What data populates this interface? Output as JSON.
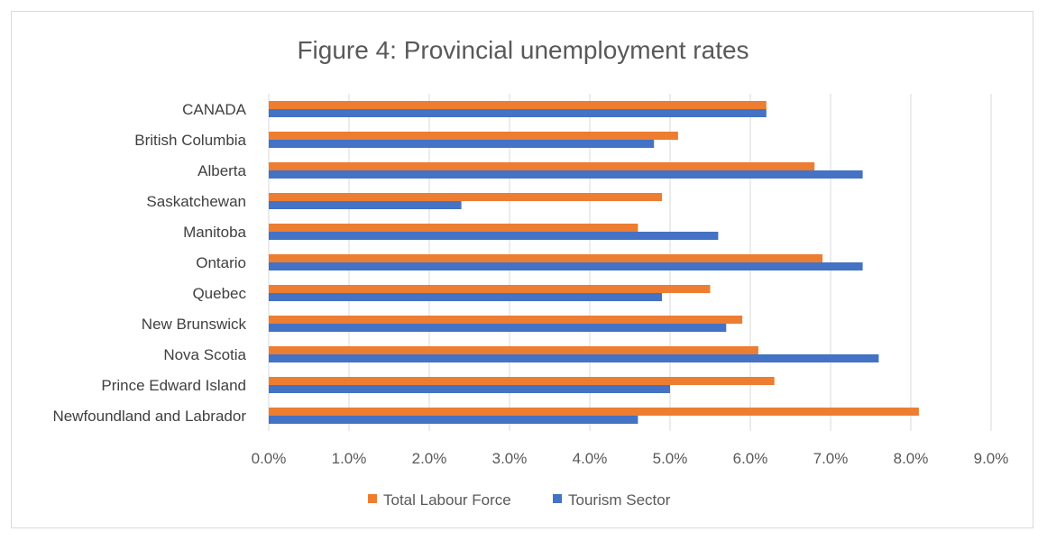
{
  "chart_data": {
    "type": "bar",
    "orientation": "horizontal",
    "title": "Figure 4: Provincial unemployment rates",
    "xlabel": "",
    "ylabel": "",
    "categories": [
      "CANADA",
      "British Columbia",
      "Alberta",
      "Saskatchewan",
      "Manitoba",
      "Ontario",
      "Quebec",
      "New Brunswick",
      "Nova Scotia",
      "Prince Edward Island",
      "Newfoundland and Labrador"
    ],
    "series": [
      {
        "name": "Total Labour Force",
        "color": "#ed7d31",
        "values": [
          6.2,
          5.1,
          6.8,
          4.9,
          4.6,
          6.9,
          5.5,
          5.9,
          6.1,
          6.3,
          8.1
        ]
      },
      {
        "name": "Tourism Sector",
        "color": "#4472c4",
        "values": [
          6.2,
          4.8,
          7.4,
          2.4,
          5.6,
          7.4,
          4.9,
          5.7,
          7.6,
          5.0,
          4.6
        ]
      }
    ],
    "xlim": [
      0,
      9
    ],
    "x_ticks": [
      "0.0%",
      "1.0%",
      "2.0%",
      "3.0%",
      "4.0%",
      "5.0%",
      "6.0%",
      "7.0%",
      "8.0%",
      "9.0%"
    ],
    "unit": "%",
    "grid": true,
    "legend_position": "bottom"
  }
}
